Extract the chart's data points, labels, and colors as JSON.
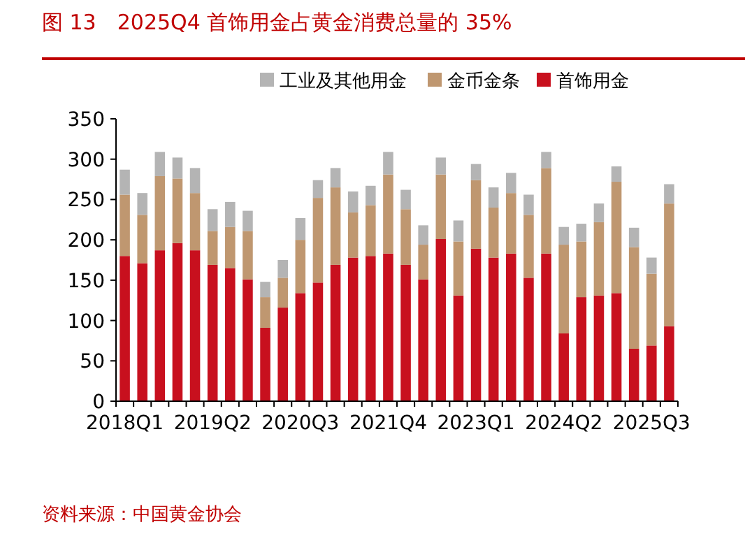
{
  "chart_data": {
    "type": "bar",
    "stacked": true,
    "title": "图 13　2025Q4 首饰用金占黄金消费总量的 35%",
    "categories": [
      "2018Q1",
      null,
      null,
      null,
      null,
      "2019Q2",
      null,
      null,
      null,
      null,
      "2020Q3",
      null,
      null,
      null,
      null,
      "2021Q4",
      null,
      null,
      null,
      null,
      "2023Q1",
      null,
      null,
      null,
      null,
      "2024Q2",
      null,
      null,
      null,
      null,
      "2025Q3",
      null
    ],
    "series": [
      {
        "name": "首饰用金",
        "color": "#c8101e",
        "values": [
          180,
          171,
          187,
          196,
          187,
          169,
          165,
          151,
          91,
          116,
          134,
          147,
          169,
          178,
          180,
          183,
          169,
          151,
          201,
          131,
          189,
          178,
          183,
          153,
          183,
          84,
          129,
          131,
          134,
          65,
          69,
          93
        ]
      },
      {
        "name": "金币金条",
        "color": "#bf9770",
        "values": [
          76,
          60,
          92,
          80,
          71,
          42,
          51,
          60,
          38,
          37,
          66,
          105,
          96,
          56,
          63,
          98,
          69,
          43,
          80,
          67,
          85,
          62,
          75,
          78,
          106,
          110,
          69,
          91,
          138,
          126,
          89,
          152
        ]
      },
      {
        "name": "工业及其他用金",
        "color": "#b4b4b4",
        "values": [
          31,
          27,
          30,
          26,
          31,
          27,
          31,
          25,
          19,
          22,
          27,
          22,
          24,
          26,
          24,
          28,
          24,
          24,
          21,
          26,
          20,
          25,
          25,
          25,
          20,
          22,
          22,
          23,
          19,
          24,
          20,
          24
        ]
      }
    ],
    "ylim": [
      0,
      350
    ],
    "yticks": [
      0,
      50,
      100,
      150,
      200,
      250,
      300,
      350
    ],
    "legend": "top",
    "grid": false,
    "annotations": [
      "资料来源：中国黄金协会"
    ]
  }
}
